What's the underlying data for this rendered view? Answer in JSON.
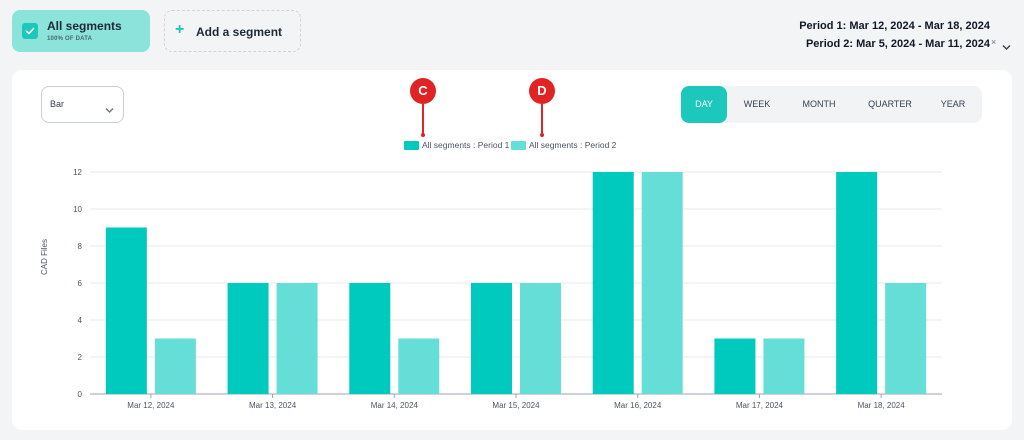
{
  "segments": {
    "selected": {
      "title": "All segments",
      "subtitle": "100% OF DATA",
      "checked": true
    },
    "add_label": "Add a segment"
  },
  "periods": {
    "period1": "Period 1: Mar 12, 2024 - Mar 18, 2024",
    "period2": "Period 2: Mar 5, 2024 - Mar 11, 2024",
    "clear_glyph": "×"
  },
  "chart_type_select": {
    "value": "Bar"
  },
  "granularity_tabs": [
    {
      "label": "DAY",
      "active": true
    },
    {
      "label": "WEEK",
      "active": false
    },
    {
      "label": "MONTH",
      "active": false
    },
    {
      "label": "QUARTER",
      "active": false
    },
    {
      "label": "YEAR",
      "active": false
    }
  ],
  "markers": [
    {
      "label": "C"
    },
    {
      "label": "D"
    }
  ],
  "colors": {
    "accent": "#1cc8bc",
    "series1": "#00c9be",
    "series2": "#66ded8",
    "marker": "#e02424"
  },
  "chart_data": {
    "type": "bar",
    "categories": [
      "Mar 12, 2024",
      "Mar 13, 2024",
      "Mar 14, 2024",
      "Mar 15, 2024",
      "Mar 16, 2024",
      "Mar 17, 2024",
      "Mar 18, 2024"
    ],
    "series": [
      {
        "name": "All segments : Period 1",
        "values": [
          9,
          6,
          6,
          6,
          12,
          3,
          12
        ]
      },
      {
        "name": "All segments : Period 2",
        "values": [
          3,
          6,
          3,
          6,
          12,
          3,
          6
        ]
      }
    ],
    "ylabel": "CAD Files",
    "xlabel": "",
    "ylim": [
      0,
      12
    ],
    "yticks": [
      0,
      2,
      4,
      6,
      8,
      10,
      12
    ],
    "grid": true,
    "legend": "top-center"
  }
}
